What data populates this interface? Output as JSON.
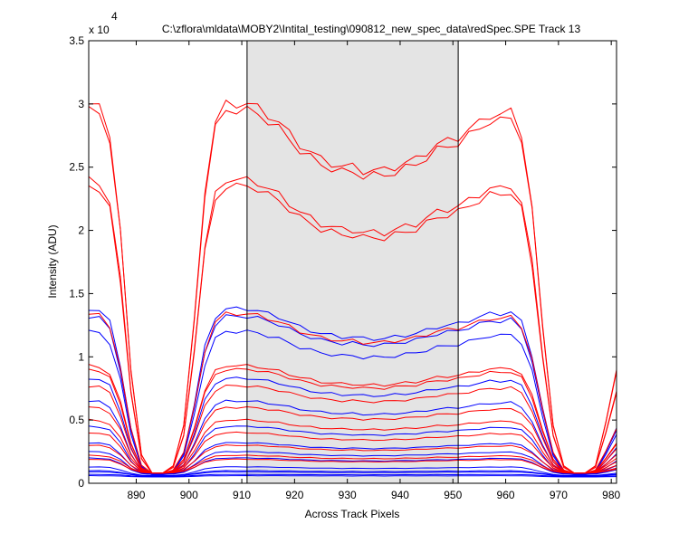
{
  "chart_data": {
    "type": "line",
    "title": "C:\\zflora\\mldata\\MOBY2\\Intital_testing\\090812_new_spec_data\\redSpec.SPE   Track 13",
    "xlabel": "Across Track Pixels",
    "ylabel": "Intensity (ADU)",
    "y_multiplier_base": "x 10",
    "y_multiplier_exponent": "4",
    "xlim": [
      881,
      981
    ],
    "ylim": [
      0,
      3.5
    ],
    "y_scale_factor": 10000,
    "x_ticks": [
      890,
      900,
      910,
      920,
      930,
      940,
      950,
      960,
      970,
      980
    ],
    "x_tick_labels": [
      "890",
      "900",
      "910",
      "920",
      "930",
      "940",
      "950",
      "960",
      "970",
      "980"
    ],
    "y_ticks": [
      0,
      0.5,
      1,
      1.5,
      2,
      2.5,
      3,
      3.5
    ],
    "y_tick_labels": [
      "0",
      "0.5",
      "1",
      "1.5",
      "2",
      "2.5",
      "3",
      "3.5"
    ],
    "grid": false,
    "legend": "none",
    "shaded_region": {
      "x": [
        911,
        951
      ],
      "color": "#e4e4e4"
    },
    "vertical_lines": [
      911,
      951
    ],
    "profile_template": {
      "x": [
        881,
        883,
        885,
        887,
        889,
        891,
        893,
        895,
        897,
        899,
        901,
        903,
        905,
        907,
        909,
        911,
        913,
        915,
        917,
        919,
        921,
        923,
        925,
        927,
        929,
        931,
        933,
        935,
        937,
        939,
        941,
        943,
        945,
        947,
        949,
        951,
        953,
        955,
        957,
        959,
        961,
        963,
        965,
        967,
        969,
        971,
        973,
        975,
        977,
        979,
        981
      ],
      "shape": [
        1.0,
        0.99,
        0.92,
        0.66,
        0.28,
        0.05,
        0.0,
        0.0,
        0.02,
        0.13,
        0.42,
        0.77,
        0.95,
        1.0,
        1.0,
        1.0,
        0.99,
        0.97,
        0.95,
        0.92,
        0.89,
        0.87,
        0.85,
        0.84,
        0.83,
        0.83,
        0.82,
        0.82,
        0.82,
        0.83,
        0.84,
        0.85,
        0.87,
        0.89,
        0.9,
        0.91,
        0.93,
        0.95,
        0.97,
        0.97,
        0.98,
        0.92,
        0.72,
        0.4,
        0.13,
        0.02,
        0.0,
        0.0,
        0.02,
        0.14,
        0.28
      ]
    },
    "series": [
      {
        "color": "#ff0000",
        "peak": 3.0,
        "base": 0.08
      },
      {
        "color": "#ff0000",
        "peak": 2.95,
        "base": 0.08
      },
      {
        "color": "#ff0000",
        "peak": 2.4,
        "base": 0.08
      },
      {
        "color": "#ff0000",
        "peak": 2.35,
        "base": 0.08
      },
      {
        "color": "#0000ff",
        "peak": 1.38,
        "base": 0.07
      },
      {
        "color": "#0000ff",
        "peak": 1.32,
        "base": 0.07
      },
      {
        "color": "#ff0000",
        "peak": 1.34,
        "base": 0.08
      },
      {
        "color": "#0000ff",
        "peak": 1.2,
        "base": 0.07
      },
      {
        "color": "#ff0000",
        "peak": 0.93,
        "base": 0.08
      },
      {
        "color": "#ff0000",
        "peak": 0.9,
        "base": 0.08
      },
      {
        "color": "#0000ff",
        "peak": 0.83,
        "base": 0.07
      },
      {
        "color": "#ff0000",
        "peak": 0.77,
        "base": 0.08
      },
      {
        "color": "#0000ff",
        "peak": 0.65,
        "base": 0.07
      },
      {
        "color": "#ff0000",
        "peak": 0.6,
        "base": 0.08
      },
      {
        "color": "#ff0000",
        "peak": 0.5,
        "base": 0.08
      },
      {
        "color": "#0000ff",
        "peak": 0.45,
        "base": 0.07
      },
      {
        "color": "#ff0000",
        "peak": 0.4,
        "base": 0.08
      },
      {
        "color": "#0000ff",
        "peak": 0.32,
        "base": 0.07
      },
      {
        "color": "#ff0000",
        "peak": 0.3,
        "base": 0.08
      },
      {
        "color": "#0000ff",
        "peak": 0.25,
        "base": 0.07
      },
      {
        "color": "#ff0000",
        "peak": 0.22,
        "base": 0.08
      },
      {
        "color": "#0000ff",
        "peak": 0.2,
        "base": 0.07
      },
      {
        "color": "#ff0000",
        "peak": 0.19,
        "base": 0.08
      },
      {
        "color": "#0000ff",
        "peak": 0.13,
        "base": 0.06
      },
      {
        "color": "#0000ff",
        "peak": 0.1,
        "base": 0.06
      },
      {
        "color": "#0000ff",
        "peak": 0.09,
        "base": 0.06
      },
      {
        "color": "#0000ff",
        "peak": 0.07,
        "base": 0.055
      },
      {
        "color": "#0000ff",
        "peak": 0.06,
        "base": 0.05
      }
    ]
  }
}
